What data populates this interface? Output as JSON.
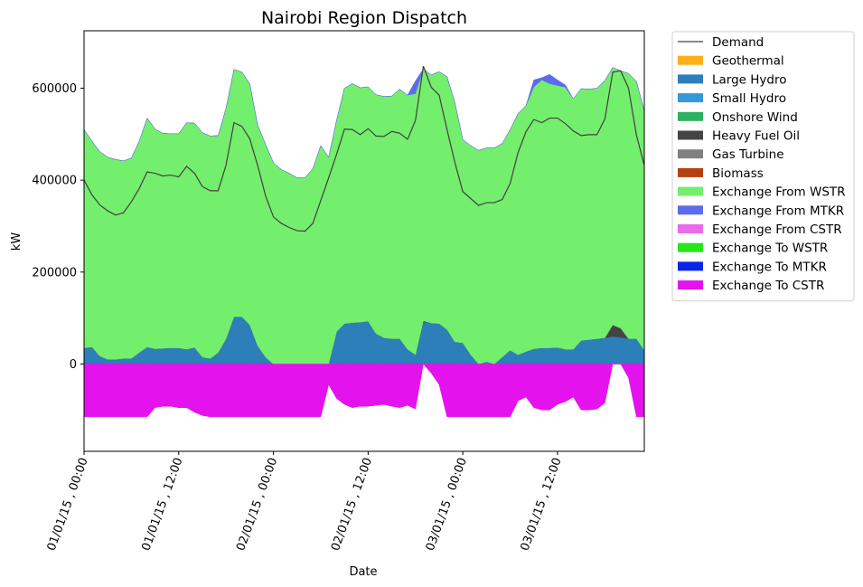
{
  "chart_data": {
    "type": "area",
    "title": "Nairobi Region Dispatch",
    "xlabel": "Date",
    "ylabel": "kW",
    "xlim": [
      0,
      71
    ],
    "ylim": [
      -190000,
      725000
    ],
    "yticks": [
      0,
      200000,
      400000,
      600000
    ],
    "ytick_labels": [
      "0",
      "200000",
      "400000",
      "600000"
    ],
    "xticks": [
      0,
      12,
      24,
      36,
      48,
      60
    ],
    "xtick_labels": [
      "01/01/15 , 00:00",
      "01/01/15 , 12:00",
      "02/01/15 , 00:00",
      "02/01/15 , 12:00",
      "03/01/15 , 00:00",
      "03/01/15 , 12:00"
    ],
    "x_unit": "hours from 01/01/15 00:00",
    "legend_position": "outside-right-top",
    "demand": {
      "name": "Demand",
      "color": "#404040",
      "values": [
        400000,
        368000,
        346000,
        333000,
        324000,
        329000,
        353000,
        382000,
        418000,
        415000,
        409000,
        411000,
        407000,
        430000,
        415000,
        386000,
        377000,
        377000,
        433000,
        525000,
        517000,
        490000,
        432000,
        366000,
        320000,
        306000,
        297000,
        290000,
        289000,
        306000,
        356000,
        405000,
        456000,
        511000,
        510000,
        499000,
        512000,
        496000,
        495000,
        506000,
        502000,
        489000,
        530000,
        648000,
        602000,
        585000,
        510000,
        438000,
        375000,
        360000,
        345000,
        351000,
        351000,
        358000,
        393000,
        460000,
        505000,
        532000,
        525000,
        535000,
        535000,
        523000,
        507000,
        497000,
        499000,
        499000,
        533000,
        635000,
        638000,
        600000,
        498000,
        432000
      ]
    },
    "series": [
      {
        "name": "Geothermal",
        "color": "#ffaf19",
        "values": []
      },
      {
        "name": "Large Hydro",
        "color": "#2c7fb8",
        "values": [
          35000,
          37000,
          17000,
          10000,
          10000,
          12000,
          12000,
          25000,
          37000,
          33000,
          34000,
          35000,
          35000,
          32000,
          36000,
          15000,
          12000,
          25000,
          55000,
          103000,
          103000,
          85000,
          40000,
          15000,
          0,
          0,
          0,
          0,
          0,
          0,
          0,
          0,
          70000,
          88000,
          90000,
          91000,
          93000,
          66000,
          57000,
          55000,
          55000,
          32000,
          20000,
          92000,
          89000,
          88000,
          75000,
          48000,
          46000,
          20000,
          0,
          5000,
          0,
          15000,
          30000,
          20000,
          27000,
          33000,
          35000,
          35000,
          36000,
          32000,
          32000,
          51000,
          53000,
          55000,
          57000,
          60000,
          58000,
          55000,
          55000,
          30000
        ]
      },
      {
        "name": "Small Hydro",
        "color": "#3498db",
        "values": []
      },
      {
        "name": "Onshore Wind",
        "color": "#2db160",
        "values": []
      },
      {
        "name": "Heavy Fuel Oil",
        "color": "#444444",
        "values": [
          0,
          0,
          0,
          0,
          0,
          0,
          0,
          0,
          0,
          0,
          0,
          0,
          0,
          0,
          0,
          0,
          0,
          0,
          0,
          0,
          0,
          0,
          0,
          0,
          0,
          0,
          0,
          0,
          0,
          0,
          0,
          0,
          0,
          0,
          0,
          0,
          0,
          0,
          0,
          0,
          0,
          0,
          0,
          2000,
          0,
          0,
          0,
          0,
          0,
          0,
          0,
          0,
          0,
          0,
          0,
          0,
          0,
          0,
          0,
          0,
          0,
          0,
          0,
          0,
          0,
          0,
          0,
          25000,
          20000,
          0,
          0,
          0
        ]
      },
      {
        "name": "Gas Turbine",
        "color": "#808080",
        "values": []
      },
      {
        "name": "Biomass",
        "color": "#b5400f",
        "values": []
      },
      {
        "name": "Exchange From WSTR",
        "color": "#74ee6d",
        "values": [
          475000,
          448000,
          445000,
          440000,
          435000,
          430000,
          436000,
          460000,
          498000,
          478000,
          468000,
          466000,
          466000,
          493000,
          488000,
          488000,
          484000,
          472000,
          502000,
          538000,
          532000,
          525000,
          480000,
          463000,
          438000,
          423000,
          415000,
          405000,
          405000,
          425000,
          475000,
          450000,
          460000,
          512000,
          520000,
          510000,
          510000,
          520000,
          525000,
          528000,
          543000,
          553000,
          568000,
          548000,
          540000,
          548000,
          550000,
          520000,
          442000,
          455000,
          465000,
          465000,
          470000,
          465000,
          480000,
          525000,
          535000,
          570000,
          583000,
          575000,
          570000,
          570000,
          545000,
          548000,
          545000,
          545000,
          560000,
          560000,
          560000,
          577000,
          560000,
          520000
        ]
      },
      {
        "name": "Exchange From MTKR",
        "color": "#5e6be9",
        "values": [
          0,
          0,
          0,
          0,
          0,
          0,
          0,
          0,
          0,
          0,
          0,
          0,
          0,
          0,
          0,
          0,
          0,
          0,
          0,
          0,
          0,
          0,
          0,
          0,
          0,
          0,
          0,
          0,
          0,
          0,
          0,
          0,
          0,
          0,
          0,
          0,
          0,
          0,
          0,
          0,
          0,
          0,
          28000,
          0,
          0,
          0,
          0,
          0,
          0,
          0,
          0,
          0,
          0,
          0,
          0,
          0,
          0,
          15000,
          5000,
          20000,
          12000,
          5000,
          0,
          0,
          0,
          0,
          0,
          0,
          0,
          0,
          0,
          0
        ]
      },
      {
        "name": "Exchange From CSTR",
        "color": "#ea6bea",
        "values": []
      },
      {
        "name": "Exchange To WSTR",
        "color": "#27e61a",
        "values": []
      },
      {
        "name": "Exchange To MTKR",
        "color": "#0a25e8",
        "values": []
      },
      {
        "name": "Exchange To CSTR",
        "color": "#e412ed",
        "values": [
          -115000,
          -115000,
          -115000,
          -115000,
          -115000,
          -115000,
          -115000,
          -115000,
          -115000,
          -95000,
          -92000,
          -92000,
          -95000,
          -95000,
          -105000,
          -112000,
          -115000,
          -115000,
          -115000,
          -115000,
          -115000,
          -115000,
          -115000,
          -115000,
          -115000,
          -115000,
          -115000,
          -115000,
          -115000,
          -115000,
          -115000,
          -45000,
          -75000,
          -88000,
          -95000,
          -92000,
          -92000,
          -90000,
          -88000,
          -92000,
          -95000,
          -90000,
          -98000,
          0,
          -20000,
          -45000,
          -115000,
          -115000,
          -115000,
          -115000,
          -115000,
          -115000,
          -115000,
          -115000,
          -115000,
          -80000,
          -72000,
          -95000,
          -100000,
          -100000,
          -88000,
          -82000,
          -72000,
          -100000,
          -100000,
          -98000,
          -85000,
          0,
          0,
          -30000,
          -115000,
          -115000
        ]
      }
    ]
  }
}
